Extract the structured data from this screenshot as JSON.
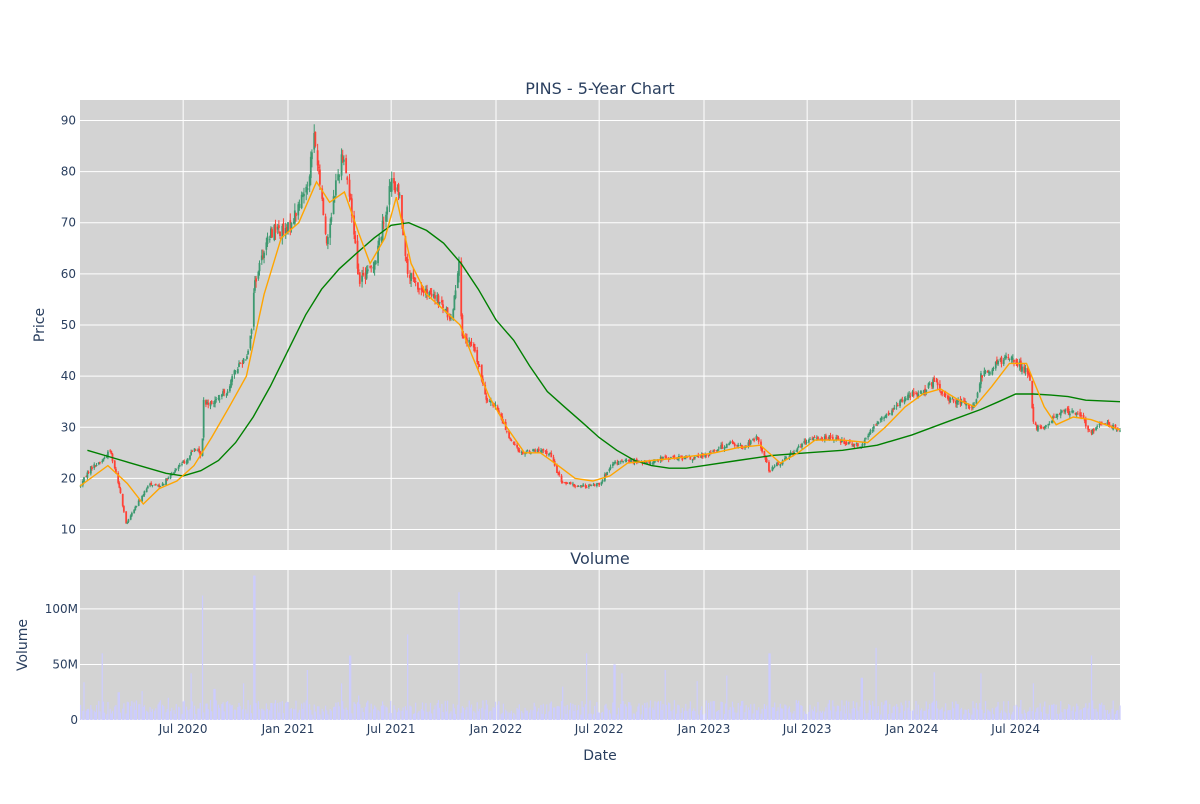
{
  "chart_data": [
    {
      "type": "candlestick",
      "title": "PINS - 5-Year Chart",
      "xlabel": "",
      "ylabel": "Price",
      "x_range": [
        "2020-01-02",
        "2024-12-31"
      ],
      "ylim": [
        6,
        94
      ],
      "y_ticks": [
        10,
        20,
        30,
        40,
        50,
        60,
        70,
        80,
        90
      ],
      "x_ticks": [
        {
          "date": "2020-07-01",
          "label": "Jul 2020"
        },
        {
          "date": "2021-01-01",
          "label": "Jan 2021"
        },
        {
          "date": "2021-07-01",
          "label": "Jul 2021"
        },
        {
          "date": "2022-01-01",
          "label": "Jan 2022"
        },
        {
          "date": "2022-07-01",
          "label": "Jul 2022"
        },
        {
          "date": "2023-01-01",
          "label": "Jan 2023"
        },
        {
          "date": "2023-07-01",
          "label": "Jul 2023"
        },
        {
          "date": "2024-01-01",
          "label": "Jan 2024"
        },
        {
          "date": "2024-07-01",
          "label": "Jul 2024"
        }
      ],
      "grid": true,
      "colors": {
        "up": "#3d9970",
        "down": "#ff4136",
        "ma_short": "#ffa500",
        "ma_long": "#008000",
        "plot_bg": "#d3d3d3"
      },
      "price_path": [
        [
          "2020-01-02",
          18.5
        ],
        [
          "2020-01-20",
          22.0
        ],
        [
          "2020-02-10",
          23.5
        ],
        [
          "2020-02-24",
          25.5
        ],
        [
          "2020-03-10",
          19.0
        ],
        [
          "2020-03-23",
          11.0
        ],
        [
          "2020-04-06",
          14.0
        ],
        [
          "2020-04-20",
          16.5
        ],
        [
          "2020-05-04",
          19.0
        ],
        [
          "2020-05-20",
          18.5
        ],
        [
          "2020-06-05",
          20.0
        ],
        [
          "2020-06-20",
          22.0
        ],
        [
          "2020-07-06",
          23.5
        ],
        [
          "2020-07-22",
          26.0
        ],
        [
          "2020-08-03",
          24.0
        ],
        [
          "2020-08-06",
          35.0
        ],
        [
          "2020-08-25",
          35.0
        ],
        [
          "2020-09-15",
          37.0
        ],
        [
          "2020-10-05",
          42.0
        ],
        [
          "2020-10-20",
          44.0
        ],
        [
          "2020-10-28",
          48.0
        ],
        [
          "2020-11-03",
          58.0
        ],
        [
          "2020-11-20",
          65.0
        ],
        [
          "2020-12-07",
          69.0
        ],
        [
          "2020-12-28",
          68.0
        ],
        [
          "2021-01-15",
          72.0
        ],
        [
          "2021-02-05",
          78.0
        ],
        [
          "2021-02-16",
          87.0
        ],
        [
          "2021-03-01",
          75.0
        ],
        [
          "2021-03-10",
          66.0
        ],
        [
          "2021-03-25",
          77.0
        ],
        [
          "2021-04-08",
          84.0
        ],
        [
          "2021-04-22",
          73.0
        ],
        [
          "2021-05-06",
          59.0
        ],
        [
          "2021-05-20",
          60.0
        ],
        [
          "2021-06-04",
          63.0
        ],
        [
          "2021-06-21",
          72.0
        ],
        [
          "2021-07-01",
          78.0
        ],
        [
          "2021-07-16",
          75.0
        ],
        [
          "2021-07-30",
          60.0
        ],
        [
          "2021-08-20",
          57.0
        ],
        [
          "2021-09-20",
          55.0
        ],
        [
          "2021-10-15",
          51.0
        ],
        [
          "2021-10-28",
          63.0
        ],
        [
          "2021-11-03",
          47.0
        ],
        [
          "2021-11-22",
          46.0
        ],
        [
          "2021-12-15",
          36.0
        ],
        [
          "2022-01-06",
          33.0
        ],
        [
          "2022-01-28",
          27.0
        ],
        [
          "2022-02-15",
          25.0
        ],
        [
          "2022-03-10",
          25.5
        ],
        [
          "2022-04-05",
          25.0
        ],
        [
          "2022-04-25",
          19.5
        ],
        [
          "2022-05-20",
          18.5
        ],
        [
          "2022-06-15",
          18.5
        ],
        [
          "2022-07-01",
          19.0
        ],
        [
          "2022-07-28",
          23.0
        ],
        [
          "2022-08-25",
          23.5
        ],
        [
          "2022-09-20",
          23.0
        ],
        [
          "2022-10-25",
          24.0
        ],
        [
          "2022-11-25",
          24.0
        ],
        [
          "2022-12-20",
          24.0
        ],
        [
          "2023-01-20",
          25.5
        ],
        [
          "2023-02-15",
          27.0
        ],
        [
          "2023-03-10",
          26.0
        ],
        [
          "2023-04-05",
          28.0
        ],
        [
          "2023-04-26",
          21.5
        ],
        [
          "2023-05-25",
          24.0
        ],
        [
          "2023-06-20",
          26.5
        ],
        [
          "2023-07-15",
          28.0
        ],
        [
          "2023-08-10",
          28.0
        ],
        [
          "2023-09-10",
          27.0
        ],
        [
          "2023-10-05",
          26.5
        ],
        [
          "2023-10-30",
          31.0
        ],
        [
          "2023-11-25",
          33.0
        ],
        [
          "2023-12-20",
          36.0
        ],
        [
          "2024-01-20",
          37.0
        ],
        [
          "2024-02-10",
          39.0
        ],
        [
          "2024-02-25",
          36.0
        ],
        [
          "2024-03-20",
          35.0
        ],
        [
          "2024-04-20",
          34.0
        ],
        [
          "2024-05-01",
          40.0
        ],
        [
          "2024-05-25",
          42.0
        ],
        [
          "2024-06-20",
          44.0
        ],
        [
          "2024-07-10",
          42.0
        ],
        [
          "2024-07-25",
          40.0
        ],
        [
          "2024-08-02",
          30.0
        ],
        [
          "2024-08-20",
          30.0
        ],
        [
          "2024-09-20",
          33.0
        ],
        [
          "2024-10-20",
          33.0
        ],
        [
          "2024-11-10",
          29.0
        ],
        [
          "2024-12-05",
          31.0
        ],
        [
          "2024-12-31",
          29.5
        ]
      ],
      "ma_short": [
        [
          "2020-01-02",
          18.5
        ],
        [
          "2020-02-20",
          22.5
        ],
        [
          "2020-03-25",
          19.0
        ],
        [
          "2020-04-22",
          15.0
        ],
        [
          "2020-05-20",
          18.0
        ],
        [
          "2020-06-20",
          19.5
        ],
        [
          "2020-07-20",
          22.5
        ],
        [
          "2020-08-20",
          28.0
        ],
        [
          "2020-09-20",
          34.0
        ],
        [
          "2020-10-20",
          40.0
        ],
        [
          "2020-11-20",
          56.0
        ],
        [
          "2020-12-20",
          67.0
        ],
        [
          "2021-01-20",
          70.0
        ],
        [
          "2021-02-20",
          78.0
        ],
        [
          "2021-03-15",
          74.0
        ],
        [
          "2021-04-10",
          76.0
        ],
        [
          "2021-05-05",
          68.0
        ],
        [
          "2021-05-25",
          62.0
        ],
        [
          "2021-06-20",
          67.0
        ],
        [
          "2021-07-10",
          75.0
        ],
        [
          "2021-08-05",
          62.0
        ],
        [
          "2021-09-01",
          56.0
        ],
        [
          "2021-10-01",
          53.0
        ],
        [
          "2021-10-30",
          50.0
        ],
        [
          "2021-11-20",
          44.0
        ],
        [
          "2021-12-20",
          36.0
        ],
        [
          "2022-01-20",
          30.0
        ],
        [
          "2022-02-20",
          25.0
        ],
        [
          "2022-03-20",
          25.0
        ],
        [
          "2022-04-20",
          22.5
        ],
        [
          "2022-05-20",
          20.0
        ],
        [
          "2022-06-20",
          19.5
        ],
        [
          "2022-07-20",
          20.5
        ],
        [
          "2022-08-20",
          23.0
        ],
        [
          "2022-10-01",
          23.5
        ],
        [
          "2022-11-15",
          24.0
        ],
        [
          "2022-12-20",
          24.5
        ],
        [
          "2023-01-20",
          25.0
        ],
        [
          "2023-03-01",
          26.0
        ],
        [
          "2023-04-10",
          26.5
        ],
        [
          "2023-05-15",
          23.0
        ],
        [
          "2023-06-15",
          25.0
        ],
        [
          "2023-07-15",
          27.5
        ],
        [
          "2023-09-01",
          27.5
        ],
        [
          "2023-10-15",
          27.0
        ],
        [
          "2023-11-15",
          30.0
        ],
        [
          "2023-12-20",
          34.0
        ],
        [
          "2024-01-20",
          36.5
        ],
        [
          "2024-02-20",
          37.5
        ],
        [
          "2024-03-20",
          35.5
        ],
        [
          "2024-04-20",
          34.0
        ],
        [
          "2024-05-20",
          38.0
        ],
        [
          "2024-06-20",
          42.5
        ],
        [
          "2024-07-20",
          42.5
        ],
        [
          "2024-08-20",
          34.0
        ],
        [
          "2024-09-10",
          30.5
        ],
        [
          "2024-10-10",
          32.0
        ],
        [
          "2024-11-10",
          31.5
        ],
        [
          "2024-12-31",
          29.5
        ]
      ],
      "ma_long": [
        [
          "2020-01-15",
          25.5
        ],
        [
          "2020-03-01",
          24.0
        ],
        [
          "2020-04-15",
          22.5
        ],
        [
          "2020-06-01",
          21.0
        ],
        [
          "2020-07-01",
          20.5
        ],
        [
          "2020-08-01",
          21.5
        ],
        [
          "2020-09-01",
          23.5
        ],
        [
          "2020-10-01",
          27.0
        ],
        [
          "2020-11-01",
          32.0
        ],
        [
          "2020-12-01",
          38.0
        ],
        [
          "2021-01-01",
          45.0
        ],
        [
          "2021-02-01",
          52.0
        ],
        [
          "2021-03-01",
          57.0
        ],
        [
          "2021-04-01",
          61.0
        ],
        [
          "2021-05-01",
          64.0
        ],
        [
          "2021-06-01",
          67.0
        ],
        [
          "2021-07-01",
          69.5
        ],
        [
          "2021-08-01",
          70.0
        ],
        [
          "2021-09-01",
          68.5
        ],
        [
          "2021-10-01",
          66.0
        ],
        [
          "2021-11-01",
          62.0
        ],
        [
          "2021-12-01",
          57.0
        ],
        [
          "2022-01-01",
          51.0
        ],
        [
          "2022-02-01",
          47.0
        ],
        [
          "2022-03-01",
          42.0
        ],
        [
          "2022-04-01",
          37.0
        ],
        [
          "2022-05-01",
          34.0
        ],
        [
          "2022-06-01",
          31.0
        ],
        [
          "2022-07-01",
          28.0
        ],
        [
          "2022-08-01",
          25.5
        ],
        [
          "2022-09-01",
          23.5
        ],
        [
          "2022-10-01",
          22.5
        ],
        [
          "2022-11-01",
          22.0
        ],
        [
          "2022-12-01",
          22.0
        ],
        [
          "2023-01-01",
          22.5
        ],
        [
          "2023-03-01",
          23.5
        ],
        [
          "2023-05-01",
          24.5
        ],
        [
          "2023-07-01",
          25.0
        ],
        [
          "2023-09-01",
          25.5
        ],
        [
          "2023-11-01",
          26.5
        ],
        [
          "2024-01-01",
          28.5
        ],
        [
          "2024-03-01",
          31.0
        ],
        [
          "2024-05-01",
          33.5
        ],
        [
          "2024-06-01",
          35.0
        ],
        [
          "2024-07-01",
          36.5
        ],
        [
          "2024-08-01",
          36.5
        ],
        [
          "2024-09-01",
          36.3
        ],
        [
          "2024-10-01",
          36.0
        ],
        [
          "2024-11-01",
          35.3
        ],
        [
          "2024-12-31",
          35.0
        ]
      ]
    },
    {
      "type": "bar",
      "title": "Volume",
      "xlabel": "Date",
      "ylabel": "Volume",
      "x_range": [
        "2020-01-02",
        "2024-12-31"
      ],
      "ylim": [
        0,
        135000000
      ],
      "y_ticks": [
        {
          "value": 0,
          "label": "0"
        },
        {
          "value": 50000000,
          "label": "50M"
        },
        {
          "value": 100000000,
          "label": "100M"
        }
      ],
      "x_ticks": [
        {
          "date": "2020-07-01",
          "label": "Jul 2020"
        },
        {
          "date": "2021-01-01",
          "label": "Jan 2021"
        },
        {
          "date": "2021-07-01",
          "label": "Jul 2021"
        },
        {
          "date": "2022-01-01",
          "label": "Jan 2022"
        },
        {
          "date": "2022-07-01",
          "label": "Jul 2022"
        },
        {
          "date": "2023-01-01",
          "label": "Jan 2023"
        },
        {
          "date": "2023-07-01",
          "label": "Jul 2023"
        },
        {
          "date": "2024-01-01",
          "label": "Jan 2024"
        },
        {
          "date": "2024-07-01",
          "label": "Jul 2024"
        }
      ],
      "grid": true,
      "colors": {
        "bar": "#ccccff",
        "plot_bg": "#d3d3d3"
      },
      "baseline_volume": 12000000,
      "volume_spikes": [
        [
          "2020-01-10",
          34000000
        ],
        [
          "2020-02-10",
          60000000
        ],
        [
          "2020-03-10",
          25000000
        ],
        [
          "2020-04-20",
          26000000
        ],
        [
          "2020-06-05",
          20000000
        ],
        [
          "2020-07-15",
          42000000
        ],
        [
          "2020-08-03",
          112000000
        ],
        [
          "2020-08-25",
          28000000
        ],
        [
          "2020-10-15",
          33000000
        ],
        [
          "2020-11-03",
          130000000
        ],
        [
          "2021-02-05",
          45000000
        ],
        [
          "2021-04-05",
          33000000
        ],
        [
          "2021-04-20",
          58000000
        ],
        [
          "2021-05-05",
          22000000
        ],
        [
          "2021-07-30",
          77000000
        ],
        [
          "2021-10-28",
          115000000
        ],
        [
          "2022-02-05",
          43000000
        ],
        [
          "2022-04-28",
          30000000
        ],
        [
          "2022-06-10",
          60000000
        ],
        [
          "2022-07-28",
          50000000
        ],
        [
          "2022-08-10",
          42000000
        ],
        [
          "2022-10-25",
          45000000
        ],
        [
          "2022-12-20",
          35000000
        ],
        [
          "2023-02-10",
          40000000
        ],
        [
          "2023-04-26",
          60000000
        ],
        [
          "2023-08-05",
          30000000
        ],
        [
          "2023-10-05",
          38000000
        ],
        [
          "2023-10-30",
          65000000
        ],
        [
          "2024-02-10",
          43000000
        ],
        [
          "2024-05-01",
          42000000
        ],
        [
          "2024-08-02",
          33000000
        ],
        [
          "2024-11-10",
          58000000
        ]
      ]
    }
  ]
}
